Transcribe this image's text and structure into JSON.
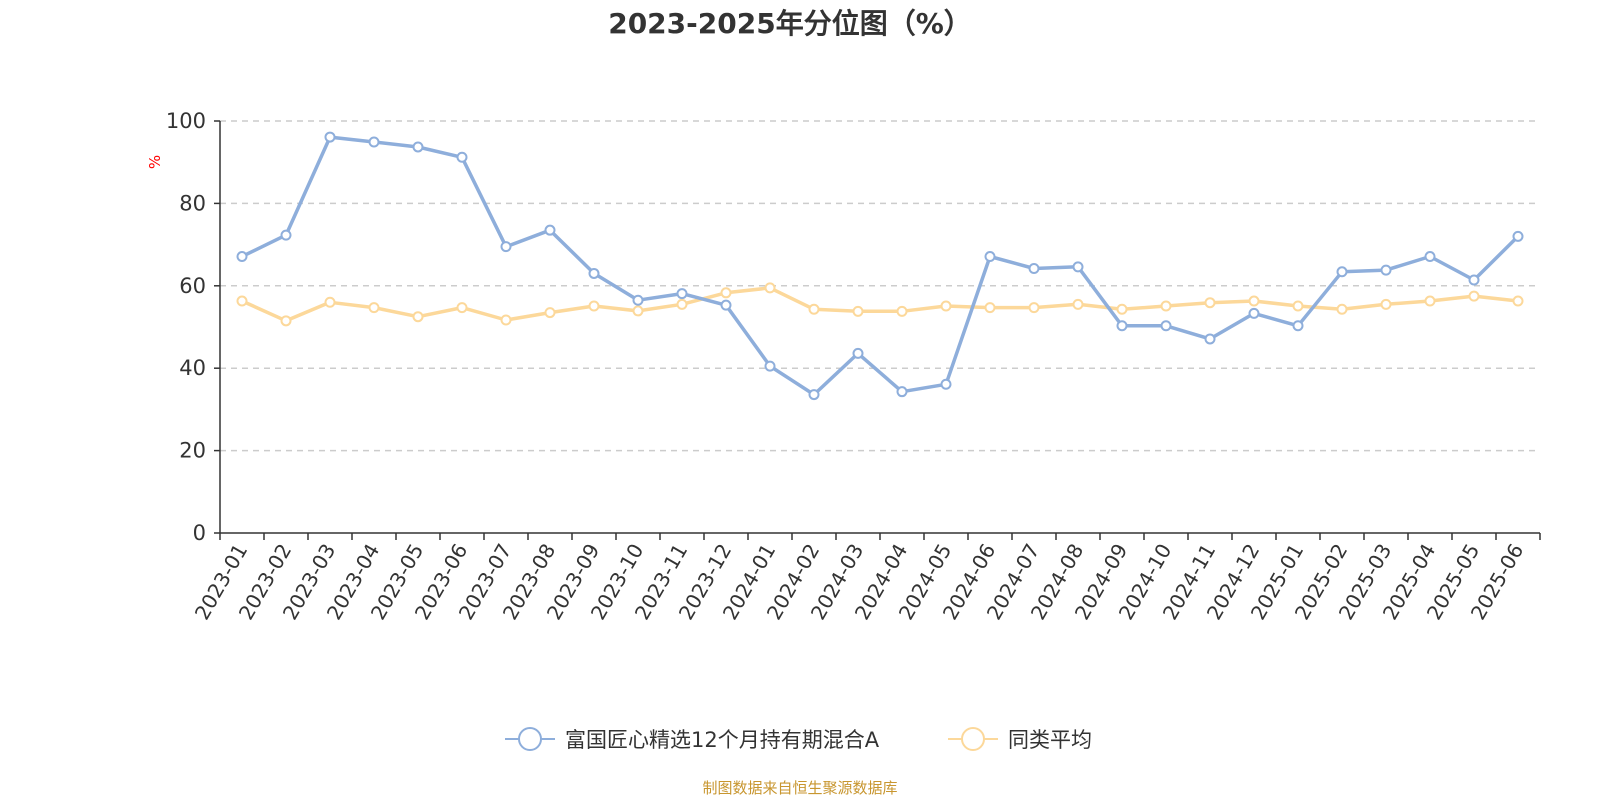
{
  "chart_data": {
    "type": "line",
    "title": "2023-2025年分位图（%）",
    "ylabel": "%",
    "ylim": [
      0,
      100
    ],
    "yticks": [
      0,
      20,
      40,
      60,
      80,
      100
    ],
    "grid": "horizontal-dashed",
    "legend_position": "bottom",
    "x": [
      "2023-01",
      "2023-02",
      "2023-03",
      "2023-04",
      "2023-05",
      "2023-06",
      "2023-07",
      "2023-08",
      "2023-09",
      "2023-10",
      "2023-11",
      "2023-12",
      "2024-01",
      "2024-02",
      "2024-03",
      "2024-04",
      "2024-05",
      "2024-06",
      "2024-07",
      "2024-08",
      "2024-09",
      "2024-10",
      "2024-11",
      "2024-12",
      "2025-01",
      "2025-02",
      "2025-03",
      "2025-04",
      "2025-05",
      "2025-06"
    ],
    "series": [
      {
        "name": "富国匠心精选12个月持有期混合A",
        "color": "#8eaedb",
        "values": [
          67.1,
          72.3,
          96.1,
          94.9,
          93.7,
          91.2,
          69.5,
          73.5,
          63.0,
          56.5,
          58.1,
          55.3,
          40.5,
          33.6,
          43.6,
          34.3,
          36.1,
          67.1,
          64.2,
          64.6,
          50.3,
          50.3,
          47.1,
          53.3,
          50.3,
          63.4,
          63.8,
          67.1,
          61.4,
          72.0
        ]
      },
      {
        "name": "同类平均",
        "color": "#fcd89a",
        "values": [
          56.3,
          51.5,
          56.0,
          54.7,
          52.5,
          54.7,
          51.7,
          53.5,
          55.1,
          53.9,
          55.5,
          58.3,
          59.5,
          54.3,
          53.8,
          53.8,
          55.1,
          54.7,
          54.7,
          55.5,
          54.3,
          55.1,
          55.9,
          56.3,
          55.1,
          54.3,
          55.5,
          56.3,
          57.5,
          56.3
        ]
      }
    ]
  },
  "colors": {
    "axis": "#333333",
    "grid": "#cccccc",
    "unit_label": "#ff0000",
    "source_text": "#c8962f"
  },
  "source": "制图数据来自恒生聚源数据库"
}
